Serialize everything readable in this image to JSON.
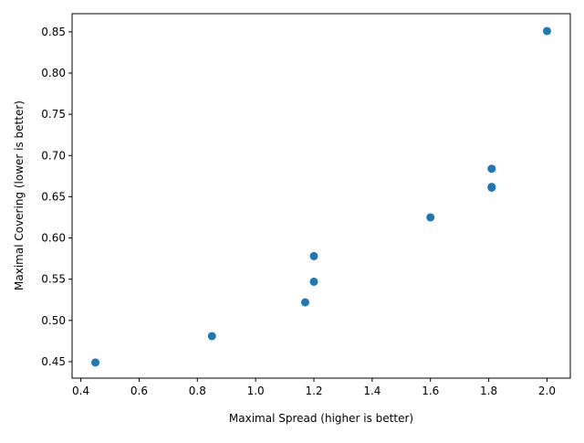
{
  "chart_data": {
    "type": "scatter",
    "title": "",
    "xlabel": "Maximal Spread (higher is better)",
    "ylabel": "Maximal Covering (lower is better)",
    "xlim": [
      0.37,
      2.08
    ],
    "ylim": [
      0.43,
      0.872
    ],
    "xticks": [
      0.4,
      0.6,
      0.8,
      1.0,
      1.2,
      1.4,
      1.6,
      1.8,
      2.0
    ],
    "xtick_labels": [
      "0.4",
      "0.6",
      "0.8",
      "1.0",
      "1.2",
      "1.4",
      "1.6",
      "1.8",
      "2.0"
    ],
    "yticks": [
      0.45,
      0.5,
      0.55,
      0.6,
      0.65,
      0.7,
      0.75,
      0.8,
      0.85
    ],
    "ytick_labels": [
      "0.45",
      "0.50",
      "0.55",
      "0.60",
      "0.65",
      "0.70",
      "0.75",
      "0.80",
      "0.85"
    ],
    "grid": false,
    "marker_color": "#1f77b4",
    "points": [
      {
        "x": 0.45,
        "y": 0.449
      },
      {
        "x": 0.85,
        "y": 0.481
      },
      {
        "x": 1.17,
        "y": 0.522
      },
      {
        "x": 1.2,
        "y": 0.547
      },
      {
        "x": 1.2,
        "y": 0.578
      },
      {
        "x": 1.6,
        "y": 0.625
      },
      {
        "x": 1.81,
        "y": 0.661
      },
      {
        "x": 1.81,
        "y": 0.662
      },
      {
        "x": 1.81,
        "y": 0.684
      },
      {
        "x": 2.0,
        "y": 0.851
      }
    ]
  }
}
